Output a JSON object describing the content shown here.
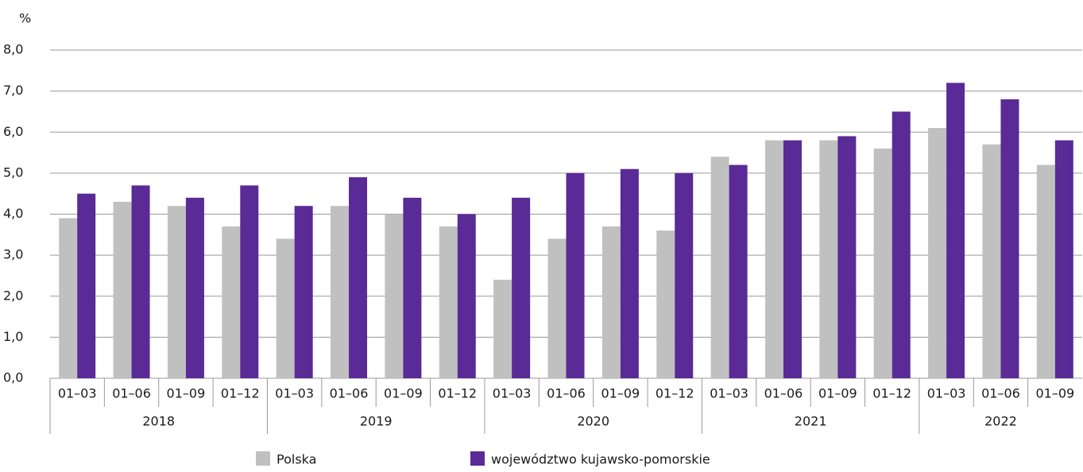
{
  "chart_data": {
    "type": "bar",
    "y_unit": "%",
    "groups": [
      {
        "name": "2018",
        "categories": [
          "01–03",
          "01–06",
          "01–09",
          "01–12"
        ]
      },
      {
        "name": "2019",
        "categories": [
          "01–03",
          "01–06",
          "01–09",
          "01–12"
        ]
      },
      {
        "name": "2020",
        "categories": [
          "01–03",
          "01–06",
          "01–09",
          "01–12"
        ]
      },
      {
        "name": "2021",
        "categories": [
          "01–03",
          "01–06",
          "01–09",
          "01–12"
        ]
      },
      {
        "name": "2022",
        "categories": [
          "01–03",
          "01–06",
          "01–09"
        ]
      }
    ],
    "series": [
      {
        "name": "Polska",
        "color": "#c0c0c0",
        "values": [
          3.9,
          4.3,
          4.2,
          3.7,
          3.4,
          4.2,
          4.0,
          3.7,
          2.4,
          3.4,
          3.7,
          3.6,
          5.4,
          5.8,
          5.8,
          5.6,
          6.1,
          5.7,
          5.2
        ]
      },
      {
        "name": "województwo kujawsko-pomorskie",
        "color": "#5a2a96",
        "values": [
          4.5,
          4.7,
          4.4,
          4.7,
          4.2,
          4.9,
          4.4,
          4.0,
          4.4,
          5.0,
          5.1,
          5.0,
          5.2,
          5.8,
          5.9,
          6.5,
          7.2,
          6.8,
          5.8
        ]
      }
    ],
    "ylim": [
      0,
      8
    ],
    "yticks": [
      {
        "value": 0,
        "label": "0,0"
      },
      {
        "value": 1,
        "label": "1,0"
      },
      {
        "value": 2,
        "label": "2,0"
      },
      {
        "value": 3,
        "label": "3,0"
      },
      {
        "value": 4,
        "label": "4,0"
      },
      {
        "value": 5,
        "label": "5,0"
      },
      {
        "value": 6,
        "label": "6,0"
      },
      {
        "value": 7,
        "label": "7,0"
      },
      {
        "value": 8,
        "label": "8,0"
      }
    ],
    "grid": true,
    "legend": "bottom"
  }
}
